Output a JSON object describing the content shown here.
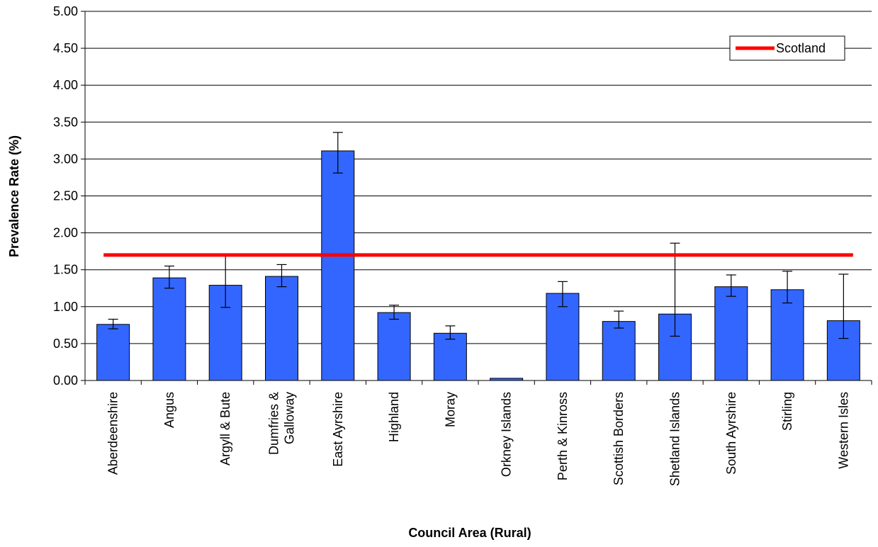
{
  "chart_data": {
    "type": "bar",
    "title": "",
    "xlabel": "Council Area (Rural)",
    "ylabel": "Prevalence Rate (%)",
    "ylim": [
      0,
      5
    ],
    "yticks": [
      "0.00",
      "0.50",
      "1.00",
      "1.50",
      "2.00",
      "2.50",
      "3.00",
      "3.50",
      "4.00",
      "4.50",
      "5.00"
    ],
    "grid": "horizontal",
    "legend_position": "top-right",
    "categories": [
      "Aberdeenshire",
      "Angus",
      "Argyll & Bute",
      "Dumfries & Galloway",
      "East Ayrshire",
      "Highland",
      "Moray",
      "Orkney Islands",
      "Perth & Kinross",
      "Scottish Borders",
      "Shetland Islands",
      "South Ayrshire",
      "Stirling",
      "Western Isles"
    ],
    "category_lines": [
      [
        "Aberdeenshire"
      ],
      [
        "Angus"
      ],
      [
        "Argyll & Bute"
      ],
      [
        "Dumfries &",
        "Galloway"
      ],
      [
        "East Ayrshire"
      ],
      [
        "Highland"
      ],
      [
        "Moray"
      ],
      [
        "Orkney Islands"
      ],
      [
        "Perth & Kinross"
      ],
      [
        "Scottish Borders"
      ],
      [
        "Shetland Islands"
      ],
      [
        "South Ayrshire"
      ],
      [
        "Stirling"
      ],
      [
        "Western Isles"
      ]
    ],
    "values": [
      0.76,
      1.39,
      1.29,
      1.41,
      3.11,
      0.92,
      0.64,
      0.03,
      1.18,
      0.8,
      0.9,
      1.27,
      1.23,
      0.81
    ],
    "error_low": [
      0.7,
      1.25,
      0.99,
      1.27,
      2.81,
      0.83,
      0.56,
      0.03,
      1.0,
      0.71,
      0.6,
      1.14,
      1.05,
      0.57
    ],
    "error_high": [
      0.83,
      1.55,
      1.7,
      1.57,
      3.36,
      1.02,
      0.74,
      0.03,
      1.34,
      0.94,
      1.86,
      1.43,
      1.48,
      1.44
    ],
    "reference_line": {
      "name": "Scotland",
      "value": 1.7
    },
    "colors": {
      "bar": "#3366ff",
      "bar_stroke": "#000000",
      "reference": "#ff0000",
      "grid": "#000000"
    }
  }
}
